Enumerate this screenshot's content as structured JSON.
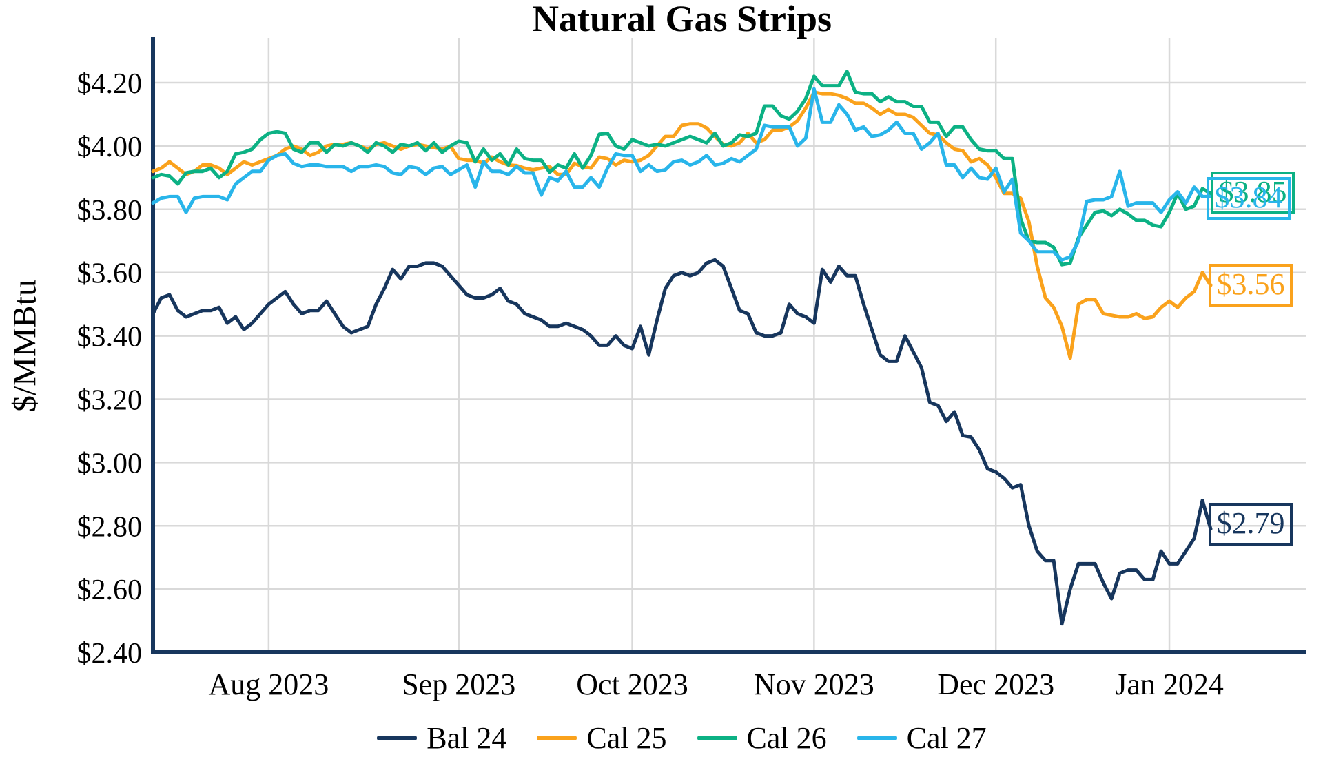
{
  "chart_data": {
    "type": "line",
    "title": "Natural Gas Strips",
    "ylabel": "$/MMBtu",
    "ylim": [
      2.4,
      4.3
    ],
    "grid": true,
    "legend_position": "bottom",
    "axis_color": "#17365D",
    "gridline_color": "#D9D9D9",
    "y_ticks": [
      {
        "value": 4.2,
        "label": "$4.20"
      },
      {
        "value": 4.0,
        "label": "$4.00"
      },
      {
        "value": 3.8,
        "label": "$3.80"
      },
      {
        "value": 3.6,
        "label": "$3.60"
      },
      {
        "value": 3.4,
        "label": "$3.40"
      },
      {
        "value": 3.2,
        "label": "$3.20"
      },
      {
        "value": 3.0,
        "label": "$3.00"
      },
      {
        "value": 2.8,
        "label": "$2.80"
      },
      {
        "value": 2.6,
        "label": "$2.60"
      },
      {
        "value": 2.4,
        "label": "$2.40"
      }
    ],
    "x_ticks": [
      {
        "label": "Aug 2023",
        "index": 14
      },
      {
        "label": "Sep 2023",
        "index": 37
      },
      {
        "label": "Oct 2023",
        "index": 58
      },
      {
        "label": "Nov 2023",
        "index": 80
      },
      {
        "label": "Dec 2023",
        "index": 102
      },
      {
        "label": "Jan 2024",
        "index": 123
      }
    ],
    "series": [
      {
        "name": "Bal 24",
        "color": "#17365D",
        "end_label": "$2.79",
        "end_value": 2.79,
        "values": [
          3.47,
          3.52,
          3.53,
          3.48,
          3.46,
          3.47,
          3.48,
          3.48,
          3.49,
          3.44,
          3.46,
          3.42,
          3.44,
          3.47,
          3.5,
          3.52,
          3.54,
          3.5,
          3.47,
          3.48,
          3.48,
          3.51,
          3.47,
          3.43,
          3.41,
          3.42,
          3.43,
          3.5,
          3.55,
          3.61,
          3.58,
          3.62,
          3.62,
          3.63,
          3.63,
          3.62,
          3.59,
          3.56,
          3.53,
          3.52,
          3.52,
          3.53,
          3.55,
          3.51,
          3.5,
          3.47,
          3.46,
          3.45,
          3.43,
          3.43,
          3.44,
          3.43,
          3.42,
          3.4,
          3.37,
          3.37,
          3.4,
          3.37,
          3.36,
          3.43,
          3.34,
          3.45,
          3.55,
          3.59,
          3.6,
          3.59,
          3.6,
          3.63,
          3.64,
          3.62,
          3.55,
          3.48,
          3.47,
          3.41,
          3.4,
          3.4,
          3.41,
          3.5,
          3.47,
          3.46,
          3.44,
          3.61,
          3.57,
          3.62,
          3.59,
          3.59,
          3.5,
          3.42,
          3.34,
          3.32,
          3.32,
          3.4,
          3.35,
          3.3,
          3.19,
          3.18,
          3.13,
          3.16,
          3.085,
          3.08,
          3.04,
          2.98,
          2.97,
          2.95,
          2.92,
          2.93,
          2.8,
          2.72,
          2.69,
          2.69,
          2.49,
          2.6,
          2.68,
          2.68,
          2.68,
          2.62,
          2.57,
          2.65,
          2.66,
          2.66,
          2.63,
          2.63,
          2.72,
          2.68,
          2.68,
          2.72,
          2.76,
          2.88,
          2.79
        ]
      },
      {
        "name": "Cal 25",
        "color": "#FAA21C",
        "end_label": "$3.56",
        "end_value": 3.56,
        "values": [
          3.92,
          3.93,
          3.95,
          3.93,
          3.91,
          3.92,
          3.94,
          3.94,
          3.93,
          3.91,
          3.93,
          3.95,
          3.94,
          3.95,
          3.96,
          3.97,
          3.99,
          4.0,
          3.99,
          3.97,
          3.98,
          4.0,
          4.005,
          4.005,
          4.01,
          4.0,
          3.99,
          4.005,
          4.01,
          4.0,
          3.99,
          4.0,
          4.005,
          4.0,
          3.995,
          3.99,
          4.0,
          3.96,
          3.955,
          3.955,
          3.945,
          3.965,
          3.95,
          3.94,
          3.938,
          3.93,
          3.925,
          3.93,
          3.935,
          3.91,
          3.91,
          3.945,
          3.935,
          3.93,
          3.965,
          3.96,
          3.94,
          3.955,
          3.95,
          3.955,
          3.97,
          4.0,
          4.03,
          4.03,
          4.065,
          4.07,
          4.07,
          4.057,
          4.03,
          4.005,
          4.0,
          4.01,
          4.04,
          4.01,
          4.02,
          4.05,
          4.05,
          4.06,
          4.08,
          4.12,
          4.17,
          4.165,
          4.165,
          4.16,
          4.15,
          4.135,
          4.135,
          4.12,
          4.1,
          4.115,
          4.1,
          4.1,
          4.09,
          4.065,
          4.04,
          4.035,
          4.01,
          3.99,
          3.985,
          3.95,
          3.96,
          3.94,
          3.9,
          3.85,
          3.85,
          3.835,
          3.76,
          3.62,
          3.52,
          3.49,
          3.43,
          3.33,
          3.5,
          3.515,
          3.515,
          3.47,
          3.465,
          3.46,
          3.46,
          3.47,
          3.455,
          3.46,
          3.49,
          3.51,
          3.49,
          3.52,
          3.54,
          3.6,
          3.56
        ]
      },
      {
        "name": "Cal 26",
        "color": "#0CB184",
        "end_label": "$3.85",
        "end_value": 3.85,
        "values": [
          3.9,
          3.91,
          3.905,
          3.88,
          3.915,
          3.92,
          3.92,
          3.93,
          3.9,
          3.92,
          3.975,
          3.98,
          3.99,
          4.02,
          4.04,
          4.045,
          4.04,
          3.99,
          3.98,
          4.01,
          4.01,
          3.98,
          4.005,
          4.0,
          4.01,
          4.0,
          3.98,
          4.01,
          4.0,
          3.98,
          4.005,
          4.0,
          4.01,
          3.985,
          4.01,
          3.98,
          4.0,
          4.015,
          4.01,
          3.95,
          3.99,
          3.955,
          3.975,
          3.94,
          3.99,
          3.96,
          3.955,
          3.955,
          3.917,
          3.94,
          3.93,
          3.975,
          3.93,
          3.97,
          4.037,
          4.04,
          4.0,
          3.99,
          4.02,
          4.01,
          4.0,
          4.005,
          4.0,
          4.01,
          4.02,
          4.03,
          4.02,
          4.01,
          4.04,
          4.0,
          4.01,
          4.035,
          4.03,
          4.04,
          4.126,
          4.126,
          4.095,
          4.085,
          4.11,
          4.15,
          4.22,
          4.19,
          4.19,
          4.19,
          4.235,
          4.17,
          4.165,
          4.165,
          4.14,
          4.155,
          4.14,
          4.14,
          4.125,
          4.125,
          4.075,
          4.075,
          4.03,
          4.06,
          4.06,
          4.02,
          3.99,
          3.985,
          3.985,
          3.96,
          3.96,
          3.77,
          3.7,
          3.695,
          3.695,
          3.68,
          3.625,
          3.63,
          3.71,
          3.75,
          3.79,
          3.795,
          3.78,
          3.8,
          3.785,
          3.765,
          3.765,
          3.75,
          3.745,
          3.79,
          3.85,
          3.8,
          3.81,
          3.865,
          3.85
        ]
      },
      {
        "name": "Cal 27",
        "color": "#29B5EA",
        "end_label": "$3.84",
        "end_value": 3.84,
        "values": [
          3.82,
          3.835,
          3.84,
          3.84,
          3.79,
          3.835,
          3.84,
          3.84,
          3.84,
          3.83,
          3.88,
          3.9,
          3.92,
          3.92,
          3.955,
          3.97,
          3.975,
          3.945,
          3.935,
          3.94,
          3.94,
          3.935,
          3.935,
          3.935,
          3.92,
          3.935,
          3.935,
          3.94,
          3.935,
          3.915,
          3.91,
          3.935,
          3.93,
          3.91,
          3.93,
          3.935,
          3.91,
          3.925,
          3.94,
          3.87,
          3.95,
          3.92,
          3.92,
          3.91,
          3.935,
          3.915,
          3.915,
          3.845,
          3.9,
          3.89,
          3.92,
          3.87,
          3.87,
          3.9,
          3.87,
          3.93,
          3.975,
          3.97,
          3.97,
          3.92,
          3.94,
          3.92,
          3.925,
          3.95,
          3.955,
          3.94,
          3.95,
          3.97,
          3.94,
          3.945,
          3.96,
          3.95,
          3.97,
          3.99,
          4.065,
          4.06,
          4.06,
          4.06,
          4.0,
          4.025,
          4.18,
          4.075,
          4.075,
          4.13,
          4.1,
          4.05,
          4.06,
          4.03,
          4.035,
          4.05,
          4.075,
          4.04,
          4.04,
          3.99,
          4.01,
          4.04,
          3.94,
          3.94,
          3.9,
          3.93,
          3.9,
          3.895,
          3.93,
          3.855,
          3.895,
          3.725,
          3.7,
          3.665,
          3.665,
          3.665,
          3.64,
          3.65,
          3.7,
          3.825,
          3.83,
          3.83,
          3.84,
          3.92,
          3.81,
          3.82,
          3.82,
          3.82,
          3.79,
          3.83,
          3.855,
          3.82,
          3.87,
          3.84,
          3.84
        ]
      }
    ]
  }
}
